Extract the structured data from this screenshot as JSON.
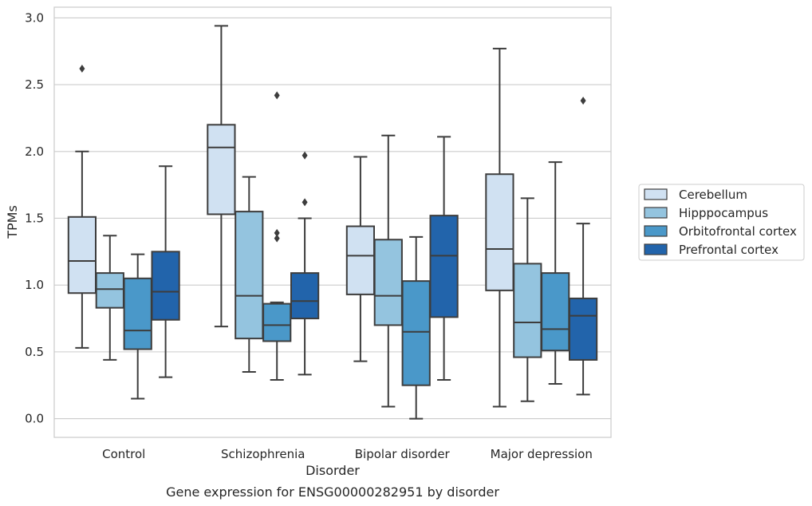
{
  "chart_data": {
    "type": "boxplot",
    "title": "",
    "caption": "Gene expression for ENSG00000282951 by disorder",
    "xlabel": "Disorder",
    "ylabel": "TPMs",
    "ylim": [
      -0.14,
      3.08
    ],
    "yticks": [
      "0.0",
      "0.5",
      "1.0",
      "1.5",
      "2.0",
      "2.5",
      "3.0"
    ],
    "categories": [
      "Control",
      "Schizophrenia",
      "Bipolar disorder",
      "Major depression"
    ],
    "grid": "horizontal",
    "legend_position": "right",
    "series": [
      {
        "name": "Cerebellum",
        "color": "#d0e1f2",
        "boxes": [
          {
            "whislo": 0.53,
            "q1": 0.94,
            "med": 1.18,
            "q3": 1.51,
            "whishi": 2.0,
            "fliers": [
              2.62
            ]
          },
          {
            "whislo": 0.69,
            "q1": 1.53,
            "med": 2.03,
            "q3": 2.2,
            "whishi": 2.94,
            "fliers": []
          },
          {
            "whislo": 0.43,
            "q1": 0.93,
            "med": 1.22,
            "q3": 1.44,
            "whishi": 1.96,
            "fliers": []
          },
          {
            "whislo": 0.09,
            "q1": 0.96,
            "med": 1.27,
            "q3": 1.83,
            "whishi": 2.77,
            "fliers": []
          }
        ]
      },
      {
        "name": "Hipppocampus",
        "color": "#94c4df",
        "boxes": [
          {
            "whislo": 0.44,
            "q1": 0.83,
            "med": 0.97,
            "q3": 1.09,
            "whishi": 1.37,
            "fliers": []
          },
          {
            "whislo": 0.35,
            "q1": 0.6,
            "med": 0.92,
            "q3": 1.55,
            "whishi": 1.81,
            "fliers": []
          },
          {
            "whislo": 0.09,
            "q1": 0.7,
            "med": 0.92,
            "q3": 1.34,
            "whishi": 2.12,
            "fliers": []
          },
          {
            "whislo": 0.13,
            "q1": 0.46,
            "med": 0.72,
            "q3": 1.16,
            "whishi": 1.65,
            "fliers": []
          }
        ]
      },
      {
        "name": "Orbitofrontal cortex",
        "color": "#4a98c9",
        "boxes": [
          {
            "whislo": 0.15,
            "q1": 0.52,
            "med": 0.66,
            "q3": 1.05,
            "whishi": 1.23,
            "fliers": []
          },
          {
            "whislo": 0.29,
            "q1": 0.58,
            "med": 0.7,
            "q3": 0.86,
            "whishi": 0.87,
            "fliers": [
              1.35,
              1.39,
              2.42
            ]
          },
          {
            "whislo": 0.0,
            "q1": 0.25,
            "med": 0.65,
            "q3": 1.03,
            "whishi": 1.36,
            "fliers": []
          },
          {
            "whislo": 0.26,
            "q1": 0.51,
            "med": 0.67,
            "q3": 1.09,
            "whishi": 1.92,
            "fliers": []
          }
        ]
      },
      {
        "name": "Prefrontal cortex",
        "color": "#2264ab",
        "boxes": [
          {
            "whislo": 0.31,
            "q1": 0.74,
            "med": 0.95,
            "q3": 1.25,
            "whishi": 1.89,
            "fliers": []
          },
          {
            "whislo": 0.33,
            "q1": 0.75,
            "med": 0.88,
            "q3": 1.09,
            "whishi": 1.5,
            "fliers": [
              1.62,
              1.97
            ]
          },
          {
            "whislo": 0.29,
            "q1": 0.76,
            "med": 1.22,
            "q3": 1.52,
            "whishi": 2.11,
            "fliers": []
          },
          {
            "whislo": 0.18,
            "q1": 0.44,
            "med": 0.77,
            "q3": 0.9,
            "whishi": 1.46,
            "fliers": [
              2.38
            ]
          }
        ]
      }
    ]
  }
}
